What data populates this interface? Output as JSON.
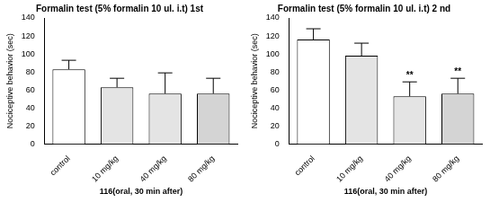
{
  "chart_data": [
    {
      "type": "bar",
      "title": "Formalin test (5% formalin 10 ul. i.t) 1st",
      "x_label": "116(oral, 30 min after)",
      "y_label": "Nociceptive behavior (sec)",
      "categories": [
        "control",
        "10 mg/kg",
        "40 mg/kg",
        "80 mg/kg"
      ],
      "values": [
        83,
        63,
        56,
        56
      ],
      "errors": [
        10,
        10,
        23,
        17
      ],
      "colors": [
        "#ffffff",
        "#e4e4e4",
        "#e4e4e4",
        "#d4d4d4"
      ],
      "ylim": [
        0,
        140
      ],
      "yticks": [
        0,
        20,
        40,
        60,
        80,
        100,
        120,
        140
      ],
      "grid": false,
      "annotations": []
    },
    {
      "type": "bar",
      "title": "Formalin test (5% formalin 10 ul. i.t) 2 nd",
      "x_label": "116(oral, 30 min after)",
      "y_label": "Nociceptive behavior (sec)",
      "categories": [
        "control",
        "10 mg/kg",
        "40 mg/kg",
        "80 mg/kg"
      ],
      "values": [
        116,
        98,
        53,
        56
      ],
      "errors": [
        12,
        14,
        16,
        17
      ],
      "colors": [
        "#ffffff",
        "#e4e4e4",
        "#e4e4e4",
        "#d4d4d4"
      ],
      "ylim": [
        0,
        140
      ],
      "yticks": [
        0,
        20,
        40,
        60,
        80,
        100,
        120,
        140
      ],
      "grid": false,
      "annotations": [
        {
          "category": "40 mg/kg",
          "text": "**"
        },
        {
          "category": "80 mg/kg",
          "text": "**"
        }
      ]
    }
  ]
}
